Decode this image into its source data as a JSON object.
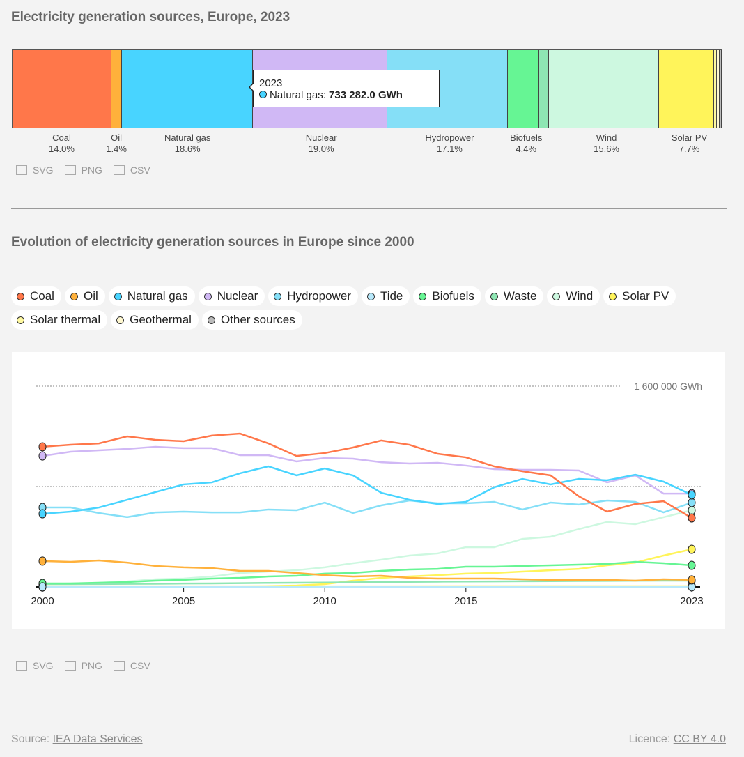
{
  "bar_chart": {
    "title": "Electricity generation sources, Europe, 2023",
    "segments": [
      {
        "name": "Coal",
        "pct": "14.0%",
        "share": 14.0,
        "color": "#ff774a",
        "labeled": true
      },
      {
        "name": "Oil",
        "pct": "1.4%",
        "share": 1.4,
        "color": "#ffb13b",
        "labeled": true
      },
      {
        "name": "Natural gas",
        "pct": "18.6%",
        "share": 18.6,
        "color": "#48d4ff",
        "labeled": true
      },
      {
        "name": "Nuclear",
        "pct": "19.0%",
        "share": 19.0,
        "color": "#d0b8f5",
        "labeled": true
      },
      {
        "name": "Hydropower",
        "pct": "17.1%",
        "share": 17.1,
        "color": "#85dff7",
        "labeled": true
      },
      {
        "name": "Biofuels",
        "pct": "4.4%",
        "share": 4.4,
        "color": "#66f594",
        "labeled": true
      },
      {
        "name": "",
        "pct": "",
        "share": 1.3,
        "color": "#8ee6b3",
        "labeled": false
      },
      {
        "name": "Wind",
        "pct": "15.6%",
        "share": 15.6,
        "color": "#cdf8e0",
        "labeled": true
      },
      {
        "name": "Solar PV",
        "pct": "7.7%",
        "share": 7.7,
        "color": "#fff45a",
        "labeled": true
      },
      {
        "name": "",
        "pct": "",
        "share": 0.3,
        "color": "#fff9a0",
        "labeled": false
      },
      {
        "name": "",
        "pct": "",
        "share": 0.3,
        "color": "#fff8d0",
        "labeled": false
      },
      {
        "name": "",
        "pct": "",
        "share": 0.2,
        "color": "#bbbbbb",
        "labeled": false
      }
    ],
    "tooltip": {
      "year": "2023",
      "label": "Natural gas: ",
      "value": "733 282.0 GWh",
      "color": "#48d4ff"
    }
  },
  "exports": {
    "svg": "SVG",
    "png": "PNG",
    "csv": "CSV"
  },
  "line_title": "Evolution of electricity generation sources in Europe since 2000",
  "chart_data": {
    "type": "line",
    "title": "Evolution of electricity generation sources in Europe since 2000",
    "ylabel": "GWh",
    "ylim": [
      0,
      1600000
    ],
    "y_ticks": [
      {
        "value": 800000,
        "label": ""
      },
      {
        "value": 1600000,
        "label": "1 600 000 GWh"
      }
    ],
    "x_ticks": [
      "2000",
      "2005",
      "2010",
      "2015",
      "2023"
    ],
    "xlim": [
      2000,
      2023
    ],
    "legend_position": "top",
    "x": [
      2000,
      2001,
      2002,
      2003,
      2004,
      2005,
      2006,
      2007,
      2008,
      2009,
      2010,
      2011,
      2012,
      2013,
      2014,
      2015,
      2016,
      2017,
      2018,
      2019,
      2020,
      2021,
      2022,
      2023
    ],
    "series": [
      {
        "name": "Coal",
        "color": "#ff774a",
        "values": [
          1117000,
          1133000,
          1144000,
          1200000,
          1172000,
          1161000,
          1206000,
          1222000,
          1144000,
          1044000,
          1067000,
          1111000,
          1167000,
          1133000,
          1061000,
          1033000,
          961000,
          922000,
          889000,
          722000,
          600000,
          661000,
          683000,
          550000
        ]
      },
      {
        "name": "Oil",
        "color": "#ffb13b",
        "values": [
          206000,
          200000,
          211000,
          194000,
          167000,
          156000,
          150000,
          128000,
          128000,
          111000,
          94000,
          83000,
          89000,
          72000,
          67000,
          67000,
          67000,
          61000,
          56000,
          56000,
          56000,
          50000,
          61000,
          56000
        ]
      },
      {
        "name": "Natural gas",
        "color": "#48d4ff",
        "values": [
          583000,
          600000,
          633000,
          694000,
          756000,
          817000,
          833000,
          906000,
          961000,
          889000,
          944000,
          889000,
          750000,
          694000,
          661000,
          678000,
          794000,
          861000,
          817000,
          861000,
          850000,
          894000,
          839000,
          733282
        ]
      },
      {
        "name": "Nuclear",
        "color": "#d0b8f5",
        "values": [
          1044000,
          1078000,
          1089000,
          1100000,
          1117000,
          1106000,
          1106000,
          1050000,
          1050000,
          1000000,
          1028000,
          1022000,
          994000,
          983000,
          989000,
          967000,
          939000,
          933000,
          933000,
          928000,
          833000,
          889000,
          744000,
          744000
        ]
      },
      {
        "name": "Hydropower",
        "color": "#85dff7",
        "values": [
          633000,
          633000,
          589000,
          556000,
          594000,
          600000,
          594000,
          594000,
          617000,
          611000,
          672000,
          589000,
          650000,
          689000,
          667000,
          667000,
          678000,
          617000,
          672000,
          656000,
          689000,
          678000,
          594000,
          672000
        ]
      },
      {
        "name": "Tide",
        "color": "#b8e9fb",
        "values": [
          500,
          500,
          500,
          500,
          500,
          500,
          500,
          500,
          500,
          500,
          500,
          500,
          500,
          500,
          500,
          500,
          500,
          500,
          500,
          500,
          500,
          500,
          500,
          500
        ]
      },
      {
        "name": "Biofuels",
        "color": "#66f594",
        "values": [
          28000,
          28000,
          33000,
          39000,
          50000,
          56000,
          67000,
          72000,
          83000,
          89000,
          106000,
          111000,
          128000,
          139000,
          144000,
          161000,
          161000,
          167000,
          172000,
          178000,
          183000,
          200000,
          189000,
          172000
        ]
      },
      {
        "name": "Waste",
        "color": "#8ee6b3",
        "values": [
          22000,
          22000,
          23000,
          24000,
          25000,
          27000,
          28000,
          30000,
          32000,
          33000,
          35000,
          37000,
          39000,
          40000,
          42000,
          43000,
          44000,
          45000,
          46000,
          47000,
          48000,
          49000,
          50000,
          50000
        ]
      },
      {
        "name": "Wind",
        "color": "#cdf8e0",
        "values": [
          22000,
          28000,
          33000,
          44000,
          61000,
          67000,
          83000,
          111000,
          122000,
          133000,
          156000,
          189000,
          217000,
          250000,
          267000,
          317000,
          317000,
          383000,
          400000,
          461000,
          517000,
          500000,
          556000,
          611000
        ]
      },
      {
        "name": "Solar PV",
        "color": "#fff45a",
        "values": [
          0,
          0,
          0,
          0,
          1000,
          1000,
          2000,
          4000,
          6000,
          11000,
          22000,
          50000,
          72000,
          83000,
          94000,
          106000,
          111000,
          122000,
          133000,
          144000,
          172000,
          194000,
          250000,
          300000
        ]
      },
      {
        "name": "Solar thermal",
        "color": "#fff9a0",
        "values": [
          0,
          0,
          0,
          0,
          0,
          0,
          0,
          0,
          1000,
          1000,
          2000,
          3000,
          4000,
          5000,
          6000,
          7000,
          7000,
          7000,
          7000,
          7000,
          7000,
          7000,
          7000,
          7000
        ]
      },
      {
        "name": "Geothermal",
        "color": "#fff8d0",
        "values": [
          6000,
          6000,
          6000,
          6000,
          6000,
          6000,
          6000,
          6000,
          6000,
          6000,
          6000,
          6000,
          6000,
          6000,
          6000,
          6000,
          6000,
          6000,
          7000,
          7000,
          7000,
          7000,
          7000,
          7000
        ]
      },
      {
        "name": "Other sources",
        "color": "#bbbbbb",
        "values": [
          3000,
          3000,
          3000,
          3000,
          3000,
          3000,
          3000,
          3000,
          3000,
          3000,
          3000,
          3000,
          3000,
          3000,
          3000,
          3000,
          3000,
          3000,
          3000,
          3000,
          3000,
          3000,
          3000,
          3000
        ]
      }
    ]
  },
  "footer": {
    "source_label": "Source: ",
    "source_link": "IEA Data Services",
    "licence_label": "Licence: ",
    "licence_link": "CC BY 4.0"
  }
}
